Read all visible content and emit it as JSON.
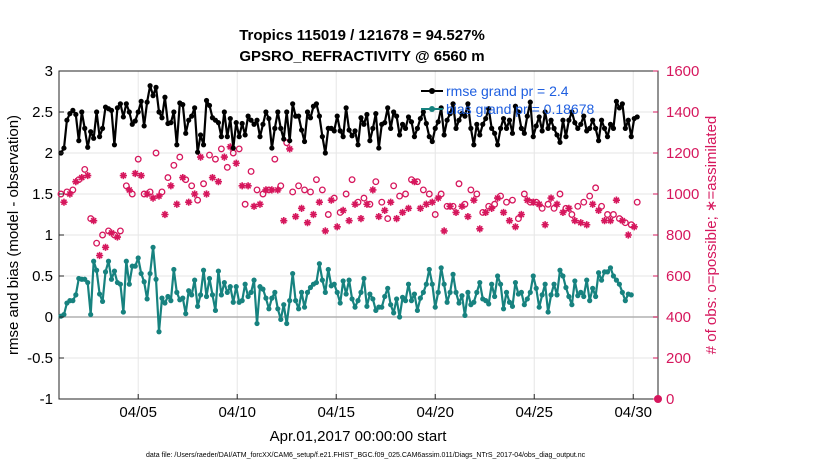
{
  "chart_data": {
    "type": "line",
    "title": "Tropics 115019 / 121678 = 94.527%",
    "subtitle": "GPSRO_REFRACTIVITY @ 6560 m",
    "xlabel": "Apr.01,2017 00:00:00 start",
    "ylabel": "rmse and bias (model - observation)",
    "y2label": "# of obs: o=possible; ∗=assimilated",
    "footnote": "data file: /Users/raeder/DAI/ATM_forcXX/CAM6_setup/f.e21.FHIST_BGC.f09_025.CAM6assim.011/Diags_NTrS_2017-04/obs_diag_output.nc",
    "xlim": [
      1,
      31.25
    ],
    "ylim": [
      -1,
      3
    ],
    "y2lim": [
      0,
      1600
    ],
    "x_ticks": [
      5,
      10,
      15,
      20,
      25,
      30
    ],
    "x_tick_labels": [
      "04/05",
      "04/10",
      "04/15",
      "04/20",
      "04/25",
      "04/30"
    ],
    "y_ticks": [
      -1,
      -0.5,
      0,
      0.5,
      1,
      1.5,
      2,
      2.5,
      3
    ],
    "y_tick_labels": [
      "-1",
      "-0.5",
      "0",
      "0.5",
      "1",
      "1.5",
      "2",
      "2.5",
      "3"
    ],
    "y2_ticks": [
      0,
      200,
      400,
      600,
      800,
      1000,
      1200,
      1400,
      1600
    ],
    "y2_tick_labels": [
      "0",
      "200",
      "400",
      "600",
      "800",
      "1000",
      "1200",
      "1400",
      "1600"
    ],
    "grid": true,
    "legend": "top-right",
    "series": [
      {
        "name": "rmse grand pr = 2.4",
        "axis": "left",
        "color": "#000000",
        "marker": "filled-circle",
        "values": [
          2.0,
          2.06,
          2.4,
          2.48,
          2.52,
          2.47,
          2.15,
          2.5,
          2.3,
          2.07,
          2.26,
          2.18,
          2.5,
          2.2,
          2.3,
          2.56,
          2.54,
          2.52,
          2.1,
          2.55,
          2.6,
          2.44,
          2.6,
          2.5,
          2.35,
          2.39,
          2.5,
          2.63,
          2.33,
          2.62,
          2.82,
          2.7,
          2.8,
          2.5,
          2.43,
          2.68,
          2.36,
          2.37,
          2.5,
          2.1,
          2.61,
          2.59,
          2.24,
          2.4,
          2.45,
          2.55,
          2.01,
          2.22,
          2.1,
          2.64,
          2.58,
          2.43,
          2.4,
          2.37,
          2.2,
          2.5,
          2.2,
          2.42,
          2.06,
          2.37,
          2.2,
          2.36,
          2.22,
          2.45,
          2.4,
          2.35,
          2.4,
          2.2,
          2.35,
          2.5,
          2.42,
          2.06,
          2.3,
          2.5,
          2.3,
          2.17,
          2.5,
          2.15,
          2.6,
          2.45,
          2.45,
          2.28,
          2.14,
          2.5,
          2.43,
          2.57,
          2.6,
          2.45,
          2.2,
          2.0,
          2.3,
          2.3,
          2.27,
          2.45,
          2.27,
          2.2,
          2.55,
          2.28,
          2.21,
          2.27,
          2.1,
          2.43,
          2.35,
          2.47,
          2.15,
          2.3,
          2.48,
          2.06,
          2.35,
          2.37,
          2.55,
          2.3,
          2.5,
          2.45,
          2.22,
          2.35,
          2.3,
          2.44,
          2.38,
          2.2,
          2.3,
          2.42,
          2.5,
          2.36,
          2.2,
          2.14,
          2.3,
          2.38,
          2.55,
          2.22,
          2.4,
          2.48,
          2.6,
          2.3,
          2.4,
          2.48,
          2.45,
          2.6,
          2.3,
          2.1,
          2.35,
          2.22,
          2.35,
          2.42,
          2.54,
          2.3,
          2.24,
          2.1,
          2.3,
          2.42,
          2.3,
          2.4,
          2.24,
          2.57,
          2.5,
          2.3,
          2.24,
          2.45,
          2.62,
          2.2,
          2.33,
          2.44,
          2.27,
          2.5,
          2.3,
          2.4,
          2.3,
          2.22,
          2.13,
          2.4,
          2.2,
          2.4,
          2.5,
          2.37,
          2.3,
          2.35,
          2.45,
          2.27,
          2.3,
          2.4,
          2.3,
          2.15,
          2.4,
          2.3,
          2.2,
          2.35,
          2.3,
          2.63,
          2.55,
          2.6,
          2.3,
          2.4,
          2.2,
          2.42,
          2.44
        ]
      },
      {
        "name": "bias grand pr = 0.18678",
        "axis": "left",
        "color": "#17827f",
        "marker": "filled-circle",
        "values": [
          0.01,
          0.03,
          0.17,
          0.2,
          0.2,
          0.27,
          0.47,
          0.46,
          0.46,
          0.42,
          0.03,
          0.68,
          0.57,
          0.28,
          0.19,
          0.55,
          0.68,
          0.46,
          0.56,
          0.42,
          0.4,
          0.06,
          0.68,
          0.4,
          0.62,
          0.62,
          0.72,
          0.53,
          0.43,
          0.22,
          0.53,
          0.85,
          0.46,
          -0.18,
          0.23,
          0.17,
          0.25,
          0.2,
          0.58,
          0.3,
          0.21,
          0.23,
          0.04,
          0.32,
          0.27,
          0.45,
          0.13,
          0.27,
          0.57,
          0.25,
          0.47,
          0.27,
          0.08,
          0.56,
          0.27,
          0.42,
          0.3,
          0.37,
          0.18,
          0.37,
          0.18,
          0.2,
          0.4,
          0.25,
          0.3,
          0.45,
          -0.08,
          0.37,
          0.34,
          0.23,
          0.1,
          0.23,
          0.3,
          0.1,
          -0.03,
          0.15,
          -0.08,
          0.2,
          0.53,
          0.2,
          0.1,
          0.3,
          0.12,
          0.3,
          0.36,
          0.4,
          0.42,
          0.65,
          0.45,
          0.3,
          0.58,
          0.38,
          0.4,
          0.3,
          0.17,
          0.44,
          0.28,
          0.45,
          0.22,
          0.12,
          0.2,
          0.3,
          0.47,
          0.13,
          0.28,
          0.22,
          0.08,
          0.12,
          0.12,
          0.25,
          0.35,
          0.15,
          0.05,
          0.22,
          0.0,
          0.24,
          0.2,
          0.4,
          0.2,
          0.28,
          0.08,
          0.23,
          0.3,
          0.4,
          0.58,
          0.4,
          0.12,
          0.3,
          0.6,
          0.4,
          0.18,
          0.3,
          0.52,
          0.3,
          0.17,
          0.26,
          0.02,
          0.3,
          0.15,
          0.18,
          0.3,
          0.42,
          0.22,
          0.2,
          0.16,
          0.4,
          0.25,
          0.5,
          0.4,
          0.1,
          0.3,
          0.18,
          0.13,
          0.42,
          0.28,
          0.3,
          0.15,
          0.22,
          0.3,
          0.5,
          0.35,
          0.12,
          0.27,
          0.4,
          0.06,
          0.27,
          0.4,
          0.27,
          0.57,
          0.5,
          0.36,
          0.25,
          0.15,
          0.44,
          0.26,
          0.3,
          0.25,
          0.45,
          0.2,
          0.35,
          0.25,
          0.54,
          0.45,
          0.55,
          0.55,
          0.6,
          0.5,
          0.45,
          0.4,
          0.3,
          0.2,
          0.28,
          0.27
        ]
      },
      {
        "name": "obs possible",
        "axis": "right",
        "color": "#d6175d",
        "marker": "open-circle",
        "values": [
          1000,
          1030,
          1010,
          1040,
          1020,
          1100,
          1070,
          1140,
          1120,
          1150,
          880,
          920,
          760,
          720,
          800,
          780,
          820,
          850,
          800,
          830,
          820,
          1150,
          1040,
          1080,
          1000,
          1160,
          1170,
          1150,
          1000,
          1060,
          1010,
          1030,
          1200,
          1040,
          1010,
          950,
          1080,
          1100,
          1140,
          1000,
          1180,
          1140,
          1070,
          1010,
          1040,
          1050,
          970,
          1250,
          1050,
          1060,
          1190,
          1140,
          1170,
          1120,
          1220,
          1250,
          1130,
          1300,
          1200,
          1220,
          1220,
          1100,
          950,
          1100,
          1110,
          990,
          1020,
          1000,
          1000,
          1080,
          1020,
          1080,
          1170,
          1080,
          1040,
          920,
          1250,
          1290,
          1010,
          940,
          1040,
          980,
          1020,
          910,
          1010,
          950,
          1070,
          1010,
          1020,
          860,
          900,
          1020,
          980,
          890,
          910,
          970,
          1000,
          920,
          1070,
          1000,
          960,
          930,
          980,
          1000,
          950,
          1080,
          1060,
          940,
          960,
          970,
          880,
          1010,
          1040,
          930,
          990,
          960,
          1000,
          980,
          1070,
          1120,
          1060,
          980,
          1020,
          1000,
          1000,
          1010,
          900,
          1030,
          1000,
          870,
          940,
          990,
          940,
          960,
          1050,
          990,
          950,
          940,
          1020,
          1020,
          1000,
          880,
          910,
          960,
          940,
          980,
          950,
          1030,
          990,
          960,
          960,
          920,
          970,
          890,
          880,
          950,
          1000,
          1020,
          960,
          1010,
          960,
          1000,
          930,
          900,
          950,
          1030,
          930,
          1000,
          1000,
          960,
          930,
          980,
          900,
          920,
          940,
          910,
          960,
          900,
          990,
          1000,
          1030,
          970,
          940,
          920,
          900,
          920,
          900,
          1020,
          880,
          920,
          860,
          850,
          850,
          890,
          960
        ]
      },
      {
        "name": "obs assimilated",
        "axis": "right",
        "color": "#d6175d",
        "marker": "asterisk",
        "values": [
          980,
          960,
          990,
          1000,
          970,
          1060,
          1030,
          1080,
          1060,
          1090,
          840,
          870,
          720,
          700,
          760,
          740,
          780,
          810,
          760,
          790,
          780,
          1090,
          990,
          1020,
          950,
          1100,
          1110,
          1090,
          950,
          1000,
          960,
          980,
          1130,
          990,
          960,
          900,
          1020,
          1040,
          1080,
          950,
          1110,
          1080,
          1010,
          960,
          990,
          1000,
          920,
          1180,
          990,
          1000,
          1120,
          1080,
          1100,
          1060,
          1150,
          1180,
          1070,
          1230,
          1130,
          1150,
          1150,
          1040,
          900,
          1040,
          1050,
          940,
          970,
          950,
          950,
          1020,
          970,
          1020,
          1100,
          1020,
          990,
          870,
          1180,
          1220,
          960,
          890,
          990,
          930,
          970,
          860,
          960,
          900,
          1010,
          960,
          970,
          820,
          850,
          970,
          930,
          840,
          860,
          920,
          950,
          870,
          1010,
          950,
          910,
          880,
          930,
          950,
          900,
          1020,
          1000,
          890,
          910,
          920,
          830,
          960,
          990,
          880,
          940,
          910,
          950,
          930,
          1010,
          1060,
          1000,
          930,
          970,
          950,
          950,
          960,
          850,
          980,
          950,
          820,
          890,
          940,
          890,
          910,
          990,
          940,
          900,
          890,
          970,
          970,
          950,
          830,
          860,
          910,
          890,
          930,
          900,
          980,
          940,
          910,
          910,
          870,
          920,
          840,
          830,
          900,
          950,
          970,
          910,
          960,
          910,
          950,
          880,
          850,
          900,
          980,
          880,
          950,
          950,
          910,
          880,
          930,
          850,
          870,
          890,
          860,
          910,
          850,
          940,
          950,
          980,
          920,
          890,
          870,
          850,
          870,
          850,
          970,
          830,
          870,
          810,
          800,
          800,
          840,
          910
        ]
      }
    ]
  }
}
